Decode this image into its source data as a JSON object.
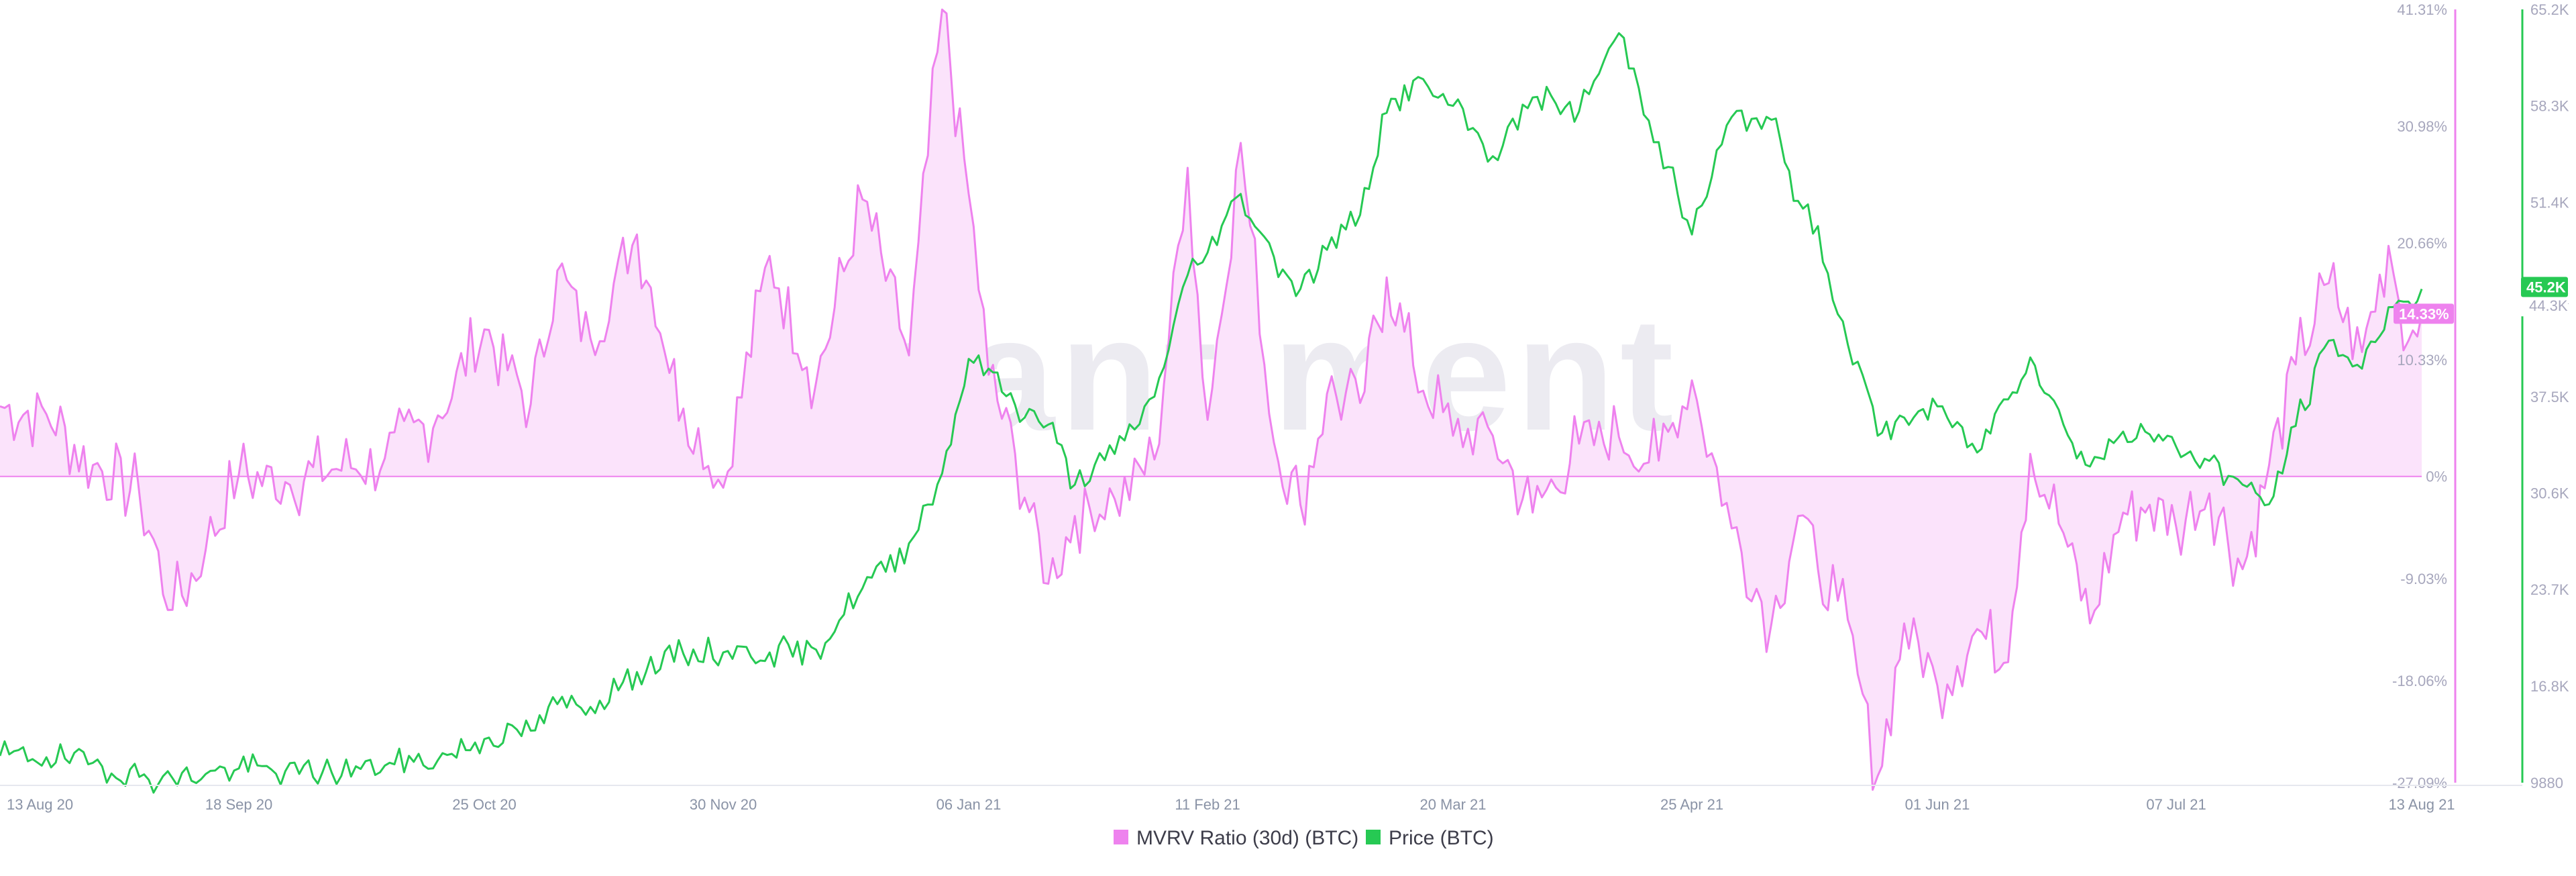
{
  "watermark": "santiment",
  "legend": [
    {
      "label": "MVRV Ratio (30d) (BTC)",
      "color": "#ee82ee"
    },
    {
      "label": "Price (BTC)",
      "color": "#26c953"
    }
  ],
  "badges": {
    "price_value": "45.2K",
    "price_partial": "44.3K",
    "mvrv_value": "14.33%"
  },
  "colors": {
    "mvrv_line": "#ee82ee",
    "mvrv_fill": "#fbe3fb",
    "price_line": "#26c953",
    "zero_line": "#ee82ee",
    "axis_left": "#ee82ee",
    "axis_right": "#26c953"
  },
  "chart_data": {
    "type": "line",
    "x_ticks": [
      "13 Aug 20",
      "18 Sep 20",
      "25 Oct 20",
      "30 Nov 20",
      "06 Jan 21",
      "11 Feb 21",
      "20 Mar 21",
      "25 Apr 21",
      "01 Jun 21",
      "07 Jul 21",
      "13 Aug 21"
    ],
    "left_axis": {
      "label": "",
      "ticks": [
        "41.31%",
        "30.98%",
        "20.66%",
        "10.33%",
        "0%",
        "-9.03%",
        "-18.06%",
        "-27.09%"
      ],
      "tick_values": [
        41.31,
        30.98,
        20.66,
        10.33,
        0,
        -9.03,
        -18.06,
        -27.09
      ],
      "range": [
        -27.09,
        41.31
      ]
    },
    "right_axis": {
      "label": "",
      "ticks": [
        "65.2K",
        "58.3K",
        "51.4K",
        "44.5K",
        "37.5K",
        "30.6K",
        "23.7K",
        "16.8K",
        "9880"
      ],
      "tick_values": [
        65200,
        58300,
        51400,
        44500,
        37500,
        30600,
        23700,
        16800,
        9880
      ],
      "range": [
        9880,
        65200
      ]
    },
    "series": [
      {
        "name": "MVRV Ratio (30d) (BTC)",
        "axis": "left",
        "unit": "%",
        "x": [
          "13 Aug 20",
          "20 Aug 20",
          "27 Aug 20",
          "03 Sep 20",
          "08 Sep 20",
          "13 Sep 20",
          "18 Sep 20",
          "25 Sep 20",
          "02 Oct 20",
          "10 Oct 20",
          "18 Oct 20",
          "25 Oct 20",
          "01 Nov 20",
          "05 Nov 20",
          "10 Nov 20",
          "17 Nov 20",
          "24 Nov 20",
          "30 Nov 20",
          "07 Dec 20",
          "14 Dec 20",
          "21 Dec 20",
          "28 Dec 20",
          "02 Jan 21",
          "06 Jan 21",
          "09 Jan 21",
          "13 Jan 21",
          "18 Jan 21",
          "22 Jan 21",
          "28 Jan 21",
          "03 Feb 21",
          "08 Feb 21",
          "11 Feb 21",
          "16 Feb 21",
          "21 Feb 21",
          "25 Feb 21",
          "01 Mar 21",
          "06 Mar 21",
          "10 Mar 21",
          "14 Mar 21",
          "20 Mar 21",
          "26 Mar 21",
          "01 Apr 21",
          "08 Apr 21",
          "14 Apr 21",
          "20 Apr 21",
          "25 Apr 21",
          "01 May 21",
          "07 May 21",
          "11 May 21",
          "14 May 21",
          "17 May 21",
          "20 May 21",
          "23 May 21",
          "27 May 21",
          "01 Jun 21",
          "07 Jun 21",
          "11 Jun 21",
          "15 Jun 21",
          "20 Jun 21",
          "24 Jun 21",
          "29 Jun 21",
          "03 Jul 21",
          "07 Jul 21",
          "12 Jul 21",
          "17 Jul 21",
          "21 Jul 21",
          "25 Jul 21",
          "30 Jul 21",
          "04 Aug 21",
          "08 Aug 21",
          "11 Aug 21",
          "13 Aug 21"
        ],
        "values": [
          6.2,
          5.5,
          1.0,
          -1.5,
          -11.8,
          -6.5,
          0.2,
          -0.5,
          0.6,
          1.6,
          5.4,
          13.0,
          6.4,
          18.2,
          12.2,
          21.4,
          6.0,
          -1.0,
          19.5,
          8.3,
          24.5,
          10.7,
          41.3,
          25.0,
          9.0,
          2.0,
          -9.5,
          -3.5,
          -2.0,
          1.5,
          27.3,
          5.0,
          29.5,
          3.0,
          -2.5,
          7.3,
          6.5,
          17.6,
          9.8,
          3.6,
          3.6,
          -3.2,
          2.9,
          3.5,
          1.4,
          8.5,
          -4.6,
          -13.0,
          -3.5,
          -8.2,
          -11.0,
          -17.5,
          -26.5,
          -13.0,
          -18.5,
          -13.5,
          -16.5,
          2.0,
          -5.0,
          -13.0,
          -3.2,
          -2.5,
          -4.5,
          -1.5,
          -8.2,
          1.0,
          9.9,
          17.1,
          11.0,
          20.4,
          12.0,
          14.33
        ]
      },
      {
        "name": "Price (BTC)",
        "axis": "right",
        "unit": "USD",
        "x": [
          "13 Aug 20",
          "20 Aug 20",
          "27 Aug 20",
          "03 Sep 20",
          "08 Sep 20",
          "13 Sep 20",
          "18 Sep 20",
          "25 Sep 20",
          "02 Oct 20",
          "10 Oct 20",
          "18 Oct 20",
          "25 Oct 20",
          "01 Nov 20",
          "05 Nov 20",
          "10 Nov 20",
          "17 Nov 20",
          "24 Nov 20",
          "30 Nov 20",
          "07 Dec 20",
          "14 Dec 20",
          "21 Dec 20",
          "28 Dec 20",
          "02 Jan 21",
          "06 Jan 21",
          "09 Jan 21",
          "13 Jan 21",
          "18 Jan 21",
          "22 Jan 21",
          "28 Jan 21",
          "03 Feb 21",
          "08 Feb 21",
          "11 Feb 21",
          "16 Feb 21",
          "21 Feb 21",
          "25 Feb 21",
          "01 Mar 21",
          "06 Mar 21",
          "10 Mar 21",
          "14 Mar 21",
          "20 Mar 21",
          "26 Mar 21",
          "01 Apr 21",
          "08 Apr 21",
          "14 Apr 21",
          "20 Apr 21",
          "25 Apr 21",
          "01 May 21",
          "07 May 21",
          "11 May 21",
          "14 May 21",
          "17 May 21",
          "20 May 21",
          "23 May 21",
          "27 May 21",
          "01 Jun 21",
          "07 Jun 21",
          "11 Jun 21",
          "15 Jun 21",
          "20 Jun 21",
          "24 Jun 21",
          "29 Jun 21",
          "03 Jul 21",
          "07 Jul 21",
          "12 Jul 21",
          "17 Jul 21",
          "21 Jul 21",
          "25 Jul 21",
          "30 Jul 21",
          "04 Aug 21",
          "08 Aug 21",
          "11 Aug 21",
          "13 Aug 21"
        ],
        "values": [
          11800,
          11700,
          11300,
          10300,
          10200,
          10500,
          10900,
          10700,
          10600,
          11100,
          11500,
          13000,
          13600,
          15500,
          15300,
          17800,
          19100,
          19200,
          19200,
          19400,
          23800,
          27000,
          32000,
          40200,
          39500,
          36900,
          35500,
          31200,
          33400,
          37500,
          46200,
          47800,
          52000,
          47500,
          45200,
          48000,
          50500,
          57800,
          60100,
          58300,
          54700,
          58900,
          57900,
          63500,
          55700,
          49100,
          57500,
          57300,
          51500,
          49700,
          43400,
          40000,
          34700,
          36000,
          36800,
          33500,
          37300,
          40300,
          35500,
          32500,
          35000,
          34800,
          33900,
          32900,
          31200,
          29800,
          35400,
          41500,
          39500,
          43900,
          44300,
          45200
        ]
      }
    ],
    "legend_position": "bottom-center",
    "grid": false
  }
}
